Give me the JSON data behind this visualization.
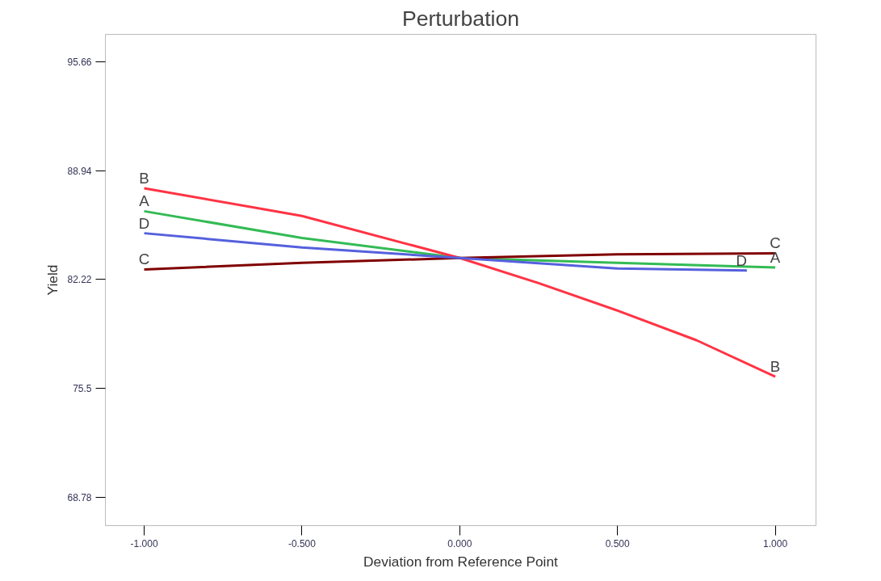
{
  "chart_data": {
    "type": "line",
    "title": "Perturbation",
    "xlabel": "Deviation from Reference Point",
    "ylabel": "Yield",
    "xlim": [
      -1.123,
      1.129
    ],
    "ylim": [
      67.01,
      97.37
    ],
    "xticks": [
      {
        "value": -1,
        "label": "-1.000"
      },
      {
        "value": -0.5,
        "label": "-0.500"
      },
      {
        "value": 0,
        "label": "0.000"
      },
      {
        "value": 0.5,
        "label": "0.500"
      },
      {
        "value": 1,
        "label": "1.000"
      }
    ],
    "yticks": [
      68.78,
      75.5,
      82.22,
      88.94,
      95.66
    ],
    "grid": false,
    "legend": false,
    "marker": "none",
    "line_style": "solid",
    "series": [
      {
        "name": "A",
        "color": "#33bb55",
        "x": [
          -1,
          -0.5,
          0,
          0.5,
          1
        ],
        "values": [
          86.44,
          84.79,
          83.55,
          83.25,
          82.96
        ]
      },
      {
        "name": "B",
        "color": "#ff3344",
        "x": [
          -1,
          -0.5,
          0,
          0.25,
          0.5,
          0.75,
          1
        ],
        "values": [
          87.86,
          86.15,
          83.55,
          82.0,
          80.3,
          78.47,
          76.22
        ]
      },
      {
        "name": "C",
        "color": "#800000",
        "x": [
          -1,
          -0.5,
          0,
          0.5,
          1
        ],
        "values": [
          82.84,
          83.25,
          83.55,
          83.78,
          83.84
        ]
      },
      {
        "name": "D",
        "color": "#5560dd",
        "x": [
          -1,
          -0.5,
          0,
          0.5,
          0.91
        ],
        "values": [
          85.08,
          84.2,
          83.55,
          82.9,
          82.78
        ]
      }
    ]
  }
}
